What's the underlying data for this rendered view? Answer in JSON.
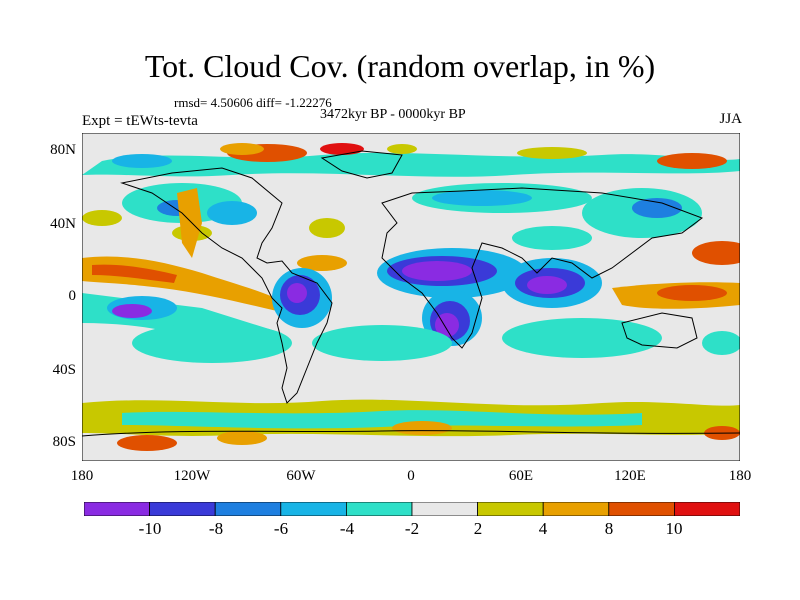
{
  "header": {
    "title": "Tot. Cloud Cov. (random overlap, in %)",
    "stats": "rmsd= 4.50606 diff= -1.22276",
    "period": "3472kyr BP - 0000kyr BP",
    "experiment": "Expt = tEWts-tevta",
    "season": "JJA"
  },
  "axes": {
    "lat_ticks": [
      "80N",
      "40N",
      "0",
      "40S",
      "80S"
    ],
    "lon_ticks": [
      "180",
      "120W",
      "60W",
      "0",
      "60E",
      "120E",
      "180"
    ]
  },
  "colorbar": {
    "labels": [
      "-10",
      "-8",
      "-6",
      "-4",
      "-2",
      "2",
      "4",
      "8",
      "10"
    ],
    "colors": [
      "#8a2be2",
      "#3a3ad8",
      "#1e7fe0",
      "#18b4e6",
      "#2ee0c8",
      "#e8e8e8",
      "#c8c800",
      "#e8a000",
      "#e05000",
      "#e01010"
    ]
  },
  "map": {
    "background_color": "#e8e8e8",
    "coastline_color": "#000000"
  }
}
